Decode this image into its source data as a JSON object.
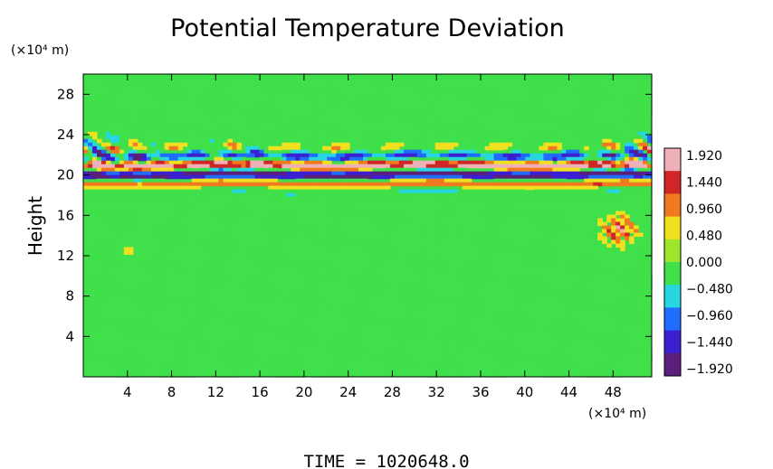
{
  "chart_data": {
    "type": "heatmap",
    "title": "Potential Temperature Deviation",
    "ylabel": "Height",
    "x_unit": "(×10⁴ m)",
    "y_unit": "(×10⁴ m)",
    "x_ticks": [
      4,
      8,
      12,
      16,
      20,
      24,
      28,
      32,
      36,
      40,
      44,
      48
    ],
    "y_ticks": [
      4,
      8,
      12,
      16,
      20,
      24,
      28
    ],
    "xlim": [
      0,
      51.5
    ],
    "ylim": [
      0,
      30
    ],
    "colorbar": {
      "labels": [
        "1.920",
        "1.440",
        "0.960",
        "0.480",
        "0.000",
        "−0.480",
        "−0.960",
        "−1.440",
        "−1.920"
      ],
      "range": [
        -1.92,
        1.92
      ],
      "colors": [
        "#5a1f7a",
        "#3b1fd0",
        "#1f6cff",
        "#27d6e0",
        "#3fe04a",
        "#9ee62a",
        "#f0e020",
        "#f07a20",
        "#d02626",
        "#f0b0b8"
      ]
    },
    "field_features": {
      "background_value": 0.0,
      "strong_band_center_height": 20.5,
      "strong_band_amplitude": 1.92,
      "wave_region_height_range": [
        19,
        26
      ],
      "warm_anomaly_x": 48.5,
      "warm_anomaly_height": 14.5,
      "weak_warm_spot_x": 4,
      "weak_warm_spot_height": 12.5
    }
  },
  "footer": {
    "time_text": "TIME  =  1020648.0"
  }
}
